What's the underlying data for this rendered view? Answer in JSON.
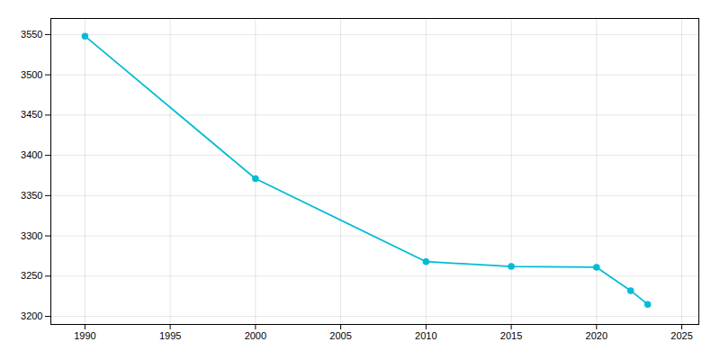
{
  "chart_data": {
    "type": "line",
    "x": [
      1990,
      2000,
      2010,
      2015,
      2020,
      2022,
      2023
    ],
    "values": [
      3548,
      3371,
      3268,
      3262,
      3261,
      3232,
      3215
    ],
    "color": "#00bcd4",
    "marker": "circle",
    "xlim": [
      1988,
      2026
    ],
    "ylim": [
      3190,
      3570
    ],
    "xticks": [
      1990,
      1995,
      2000,
      2005,
      2010,
      2015,
      2020,
      2025
    ],
    "yticks": [
      3200,
      3250,
      3300,
      3350,
      3400,
      3450,
      3500,
      3550
    ],
    "grid": true
  }
}
